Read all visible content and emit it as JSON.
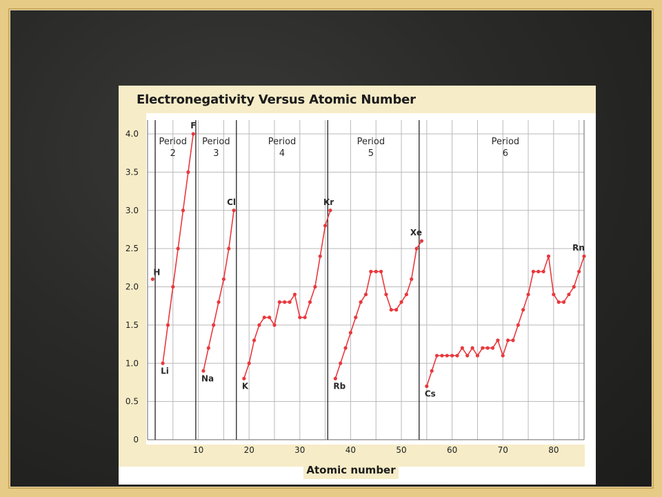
{
  "colors": {
    "series": "#e8383d",
    "tan_band": "#f6ecc8",
    "grid": "#b9b9b9",
    "divider": "#222222"
  },
  "chart_data": {
    "type": "line",
    "title": "Electronegativity Versus Atomic Number",
    "xlabel": "Atomic number",
    "ylabel": "",
    "xlim": [
      0,
      86
    ],
    "ylim": [
      0,
      4.0
    ],
    "x_ticks": [
      {
        "v": 10,
        "t": "10"
      },
      {
        "v": 20,
        "t": "20"
      },
      {
        "v": 30,
        "t": "30"
      },
      {
        "v": 40,
        "t": "40"
      },
      {
        "v": 50,
        "t": "50"
      },
      {
        "v": 60,
        "t": "60"
      },
      {
        "v": 70,
        "t": "70"
      },
      {
        "v": 80,
        "t": "80"
      }
    ],
    "y_ticks": [
      {
        "v": 0,
        "t": "0"
      },
      {
        "v": 0.5,
        "t": "0.5"
      },
      {
        "v": 1.0,
        "t": "1.0"
      },
      {
        "v": 1.5,
        "t": "1.5"
      },
      {
        "v": 2.0,
        "t": "2.0"
      },
      {
        "v": 2.5,
        "t": "2.5"
      },
      {
        "v": 3.0,
        "t": "3.0"
      },
      {
        "v": 3.5,
        "t": "3.5"
      },
      {
        "v": 4.0,
        "t": "4.0"
      }
    ],
    "grid": true,
    "legend": "none",
    "period_dividers": [
      1.5,
      9.5,
      17.5,
      35.5,
      53.5
    ],
    "periods": [
      {
        "line1": "Period",
        "line2": "2",
        "x": 5
      },
      {
        "line1": "Period",
        "line2": "3",
        "x": 13.5
      },
      {
        "line1": "Period",
        "line2": "4",
        "x": 26.5
      },
      {
        "line1": "Period",
        "line2": "5",
        "x": 44
      },
      {
        "line1": "Period",
        "line2": "6",
        "x": 70.5
      }
    ],
    "series": [
      {
        "points": [
          [
            1,
            2.1
          ]
        ]
      },
      {
        "points": [
          [
            3,
            1.0
          ],
          [
            4,
            1.5
          ],
          [
            5,
            2.0
          ],
          [
            6,
            2.5
          ],
          [
            7,
            3.0
          ],
          [
            8,
            3.5
          ],
          [
            9,
            4.0
          ]
        ]
      },
      {
        "points": [
          [
            11,
            0.9
          ],
          [
            12,
            1.2
          ],
          [
            13,
            1.5
          ],
          [
            14,
            1.8
          ],
          [
            15,
            2.1
          ],
          [
            16,
            2.5
          ],
          [
            17,
            3.0
          ]
        ]
      },
      {
        "points": [
          [
            19,
            0.8
          ],
          [
            20,
            1.0
          ],
          [
            21,
            1.3
          ],
          [
            22,
            1.5
          ],
          [
            23,
            1.6
          ],
          [
            24,
            1.6
          ],
          [
            25,
            1.5
          ],
          [
            26,
            1.8
          ],
          [
            27,
            1.8
          ],
          [
            28,
            1.8
          ],
          [
            29,
            1.9
          ],
          [
            30,
            1.6
          ],
          [
            31,
            1.6
          ],
          [
            32,
            1.8
          ],
          [
            33,
            2.0
          ],
          [
            34,
            2.4
          ],
          [
            35,
            2.8
          ],
          [
            36,
            3.0
          ]
        ]
      },
      {
        "points": [
          [
            37,
            0.8
          ],
          [
            38,
            1.0
          ],
          [
            39,
            1.2
          ],
          [
            40,
            1.4
          ],
          [
            41,
            1.6
          ],
          [
            42,
            1.8
          ],
          [
            43,
            1.9
          ],
          [
            44,
            2.2
          ],
          [
            45,
            2.2
          ],
          [
            46,
            2.2
          ],
          [
            47,
            1.9
          ],
          [
            48,
            1.7
          ],
          [
            49,
            1.7
          ],
          [
            50,
            1.8
          ],
          [
            51,
            1.9
          ],
          [
            52,
            2.1
          ],
          [
            53,
            2.5
          ],
          [
            54,
            2.6
          ]
        ]
      },
      {
        "points": [
          [
            55,
            0.7
          ],
          [
            56,
            0.9
          ],
          [
            57,
            1.1
          ],
          [
            58,
            1.1
          ],
          [
            59,
            1.1
          ],
          [
            60,
            1.1
          ],
          [
            61,
            1.1
          ],
          [
            62,
            1.2
          ],
          [
            63,
            1.1
          ],
          [
            64,
            1.2
          ],
          [
            65,
            1.1
          ],
          [
            66,
            1.2
          ],
          [
            67,
            1.2
          ],
          [
            68,
            1.2
          ],
          [
            69,
            1.3
          ],
          [
            70,
            1.1
          ],
          [
            71,
            1.3
          ],
          [
            72,
            1.3
          ],
          [
            73,
            1.5
          ],
          [
            74,
            1.7
          ],
          [
            75,
            1.9
          ],
          [
            76,
            2.2
          ],
          [
            77,
            2.2
          ],
          [
            78,
            2.2
          ],
          [
            79,
            2.4
          ],
          [
            80,
            1.9
          ],
          [
            81,
            1.8
          ],
          [
            82,
            1.8
          ],
          [
            83,
            1.9
          ],
          [
            84,
            2.0
          ],
          [
            85,
            2.2
          ],
          [
            86,
            2.4
          ]
        ]
      }
    ],
    "annotations": [
      {
        "text": "H",
        "x": 1,
        "y": 2.1,
        "pos": "upper-right"
      },
      {
        "text": "Li",
        "x": 3,
        "y": 1.0,
        "pos": "below-right"
      },
      {
        "text": "F",
        "x": 9,
        "y": 4.0,
        "pos": "above"
      },
      {
        "text": "Na",
        "x": 11,
        "y": 0.9,
        "pos": "below-right"
      },
      {
        "text": "Cl",
        "x": 17,
        "y": 3.0,
        "pos": "above"
      },
      {
        "text": "K",
        "x": 19,
        "y": 0.8,
        "pos": "below-right"
      },
      {
        "text": "Kr",
        "x": 36,
        "y": 3.0,
        "pos": "above"
      },
      {
        "text": "Rb",
        "x": 37,
        "y": 0.8,
        "pos": "below-right"
      },
      {
        "text": "Xe",
        "x": 54,
        "y": 2.6,
        "pos": "above-left"
      },
      {
        "text": "Cs",
        "x": 55,
        "y": 0.7,
        "pos": "below-right"
      },
      {
        "text": "Rn",
        "x": 86,
        "y": 2.4,
        "pos": "above-left"
      }
    ]
  }
}
